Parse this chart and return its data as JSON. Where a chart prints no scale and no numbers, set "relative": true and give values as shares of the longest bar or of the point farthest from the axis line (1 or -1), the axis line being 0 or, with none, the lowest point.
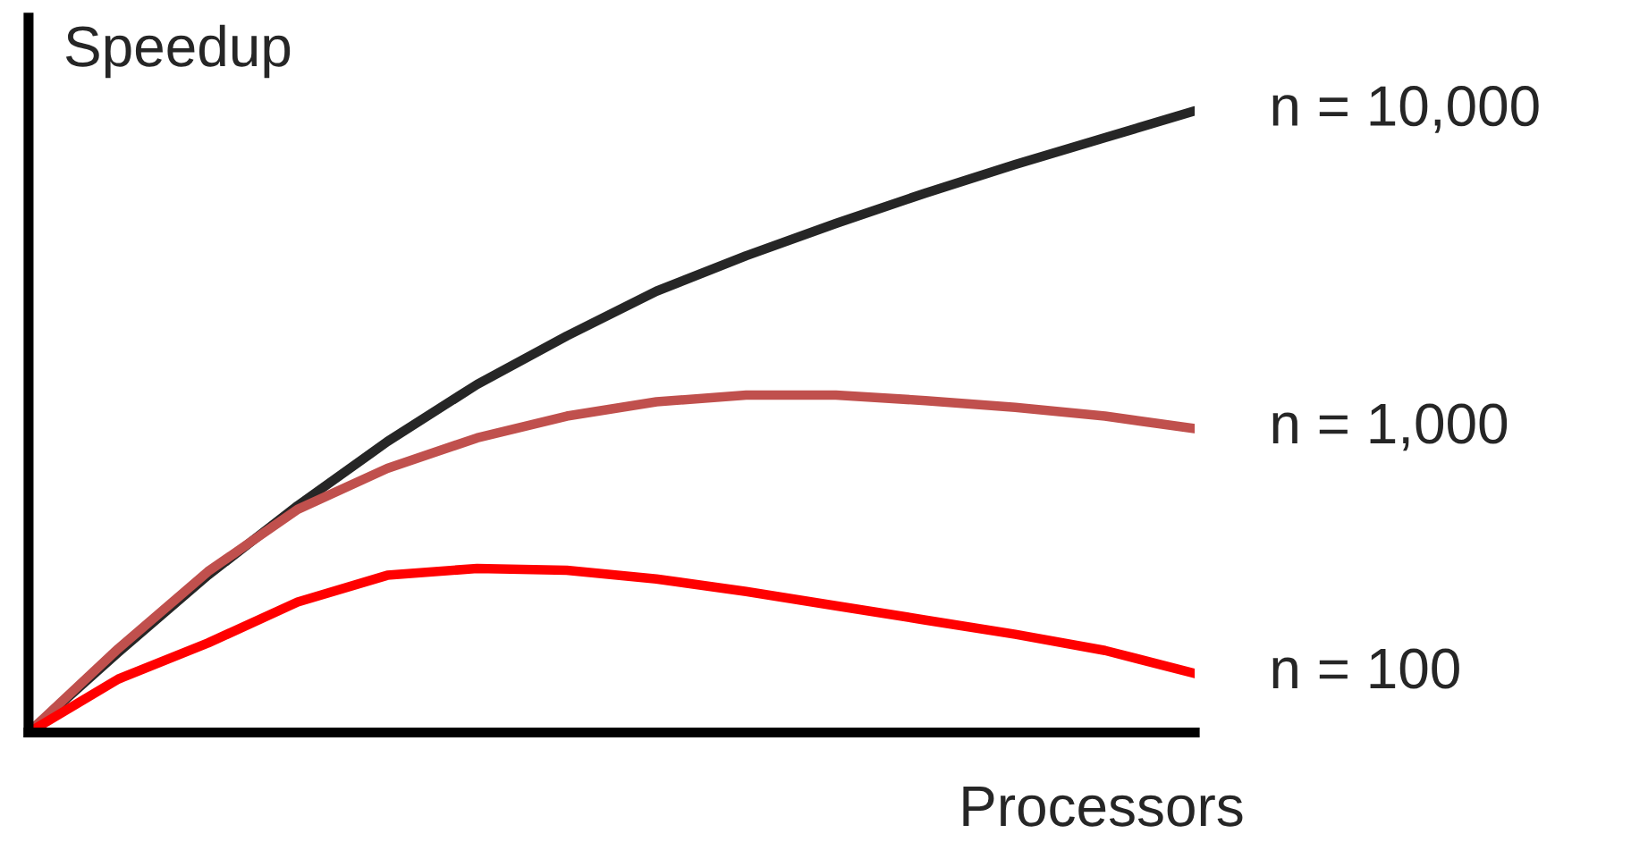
{
  "chart_data": {
    "type": "line",
    "relative": true,
    "xlabel": "Processors",
    "ylabel": "Speedup",
    "grid": false,
    "legend": false,
    "marker": "none",
    "line_style": "solid",
    "categories": [
      null,
      null,
      null,
      null,
      null,
      null,
      null,
      null,
      null,
      null,
      null,
      null,
      null,
      null
    ],
    "series": [
      {
        "name": "n = 10,000",
        "color": "#262626",
        "values": [
          0,
          0.129,
          0.253,
          0.365,
          0.468,
          0.56,
          0.638,
          0.71,
          0.767,
          0.819,
          0.868,
          0.914,
          0.957,
          1
        ]
      },
      {
        "name": "n = 1,000",
        "color": "#c0504d",
        "values": [
          0,
          0.135,
          0.259,
          0.359,
          0.425,
          0.474,
          0.509,
          0.532,
          0.543,
          0.543,
          0.534,
          0.523,
          0.509,
          0.489
        ]
      },
      {
        "name": "n = 100",
        "color": "#ff0000",
        "values": [
          0,
          0.086,
          0.144,
          0.21,
          0.253,
          0.264,
          0.261,
          0.247,
          0.227,
          0.204,
          0.181,
          0.158,
          0.132,
          0.095
        ]
      }
    ]
  }
}
